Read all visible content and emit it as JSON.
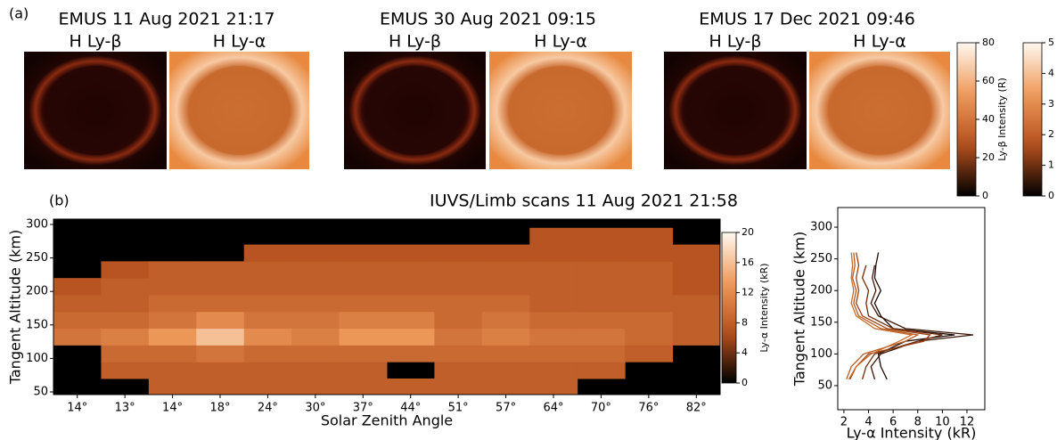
{
  "panel_a": {
    "label": "(a)",
    "observations": [
      {
        "title": "EMUS  11 Aug 2021 21:17",
        "images": [
          "H Ly-β",
          "H Ly-α"
        ]
      },
      {
        "title": "EMUS  30 Aug 2021 09:15",
        "images": [
          "H Ly-β",
          "H Ly-α"
        ]
      },
      {
        "title": "EMUS  17 Dec 2021 09:46",
        "images": [
          "H Ly-β",
          "H Ly-α"
        ]
      }
    ],
    "colorbars": [
      {
        "label": "Ly-β Intensity (R)",
        "lim": [
          0,
          80
        ],
        "ticks": [
          0,
          20,
          40,
          60,
          80
        ]
      },
      {
        "label": "Ly-α Intensity (kR)",
        "lim": [
          0,
          5
        ],
        "ticks": [
          0,
          1,
          2,
          3,
          4,
          5
        ]
      }
    ]
  },
  "colormap": [
    "#000000",
    "#b5501e",
    "#ef9a5a",
    "#fff8f0"
  ],
  "chart_data": [
    {
      "type": "heatmap",
      "label": "(b)",
      "title": "IUVS/Limb scans  11 Aug 2021 21:58",
      "xlabel": "Solar Zenith Angle",
      "ylabel": "Tangent Altitude (km)",
      "categories": [
        "14°",
        "13°",
        "14°",
        "18°",
        "24°",
        "30°",
        "37°",
        "44°",
        "51°",
        "57°",
        "64°",
        "70°",
        "76°",
        "82°"
      ],
      "ybins": [
        46,
        70,
        95,
        120,
        145,
        170,
        195,
        220,
        245,
        270,
        295
      ],
      "ylim": [
        46,
        308
      ],
      "yticks": [
        50,
        100,
        150,
        200,
        250,
        300
      ],
      "values": [
        [
          null,
          null,
          null,
          10,
          9,
          8,
          7,
          null,
          null,
          null
        ],
        [
          null,
          8,
          9,
          11,
          9,
          8,
          8,
          7,
          null,
          null
        ],
        [
          8,
          8,
          9,
          13,
          10,
          9,
          8,
          8,
          null,
          null
        ],
        [
          8,
          8,
          10,
          16,
          12,
          9,
          8,
          8,
          null,
          null
        ],
        [
          8,
          8,
          9,
          12,
          10,
          9,
          8,
          8,
          7,
          null
        ],
        [
          8,
          8,
          9,
          11,
          10,
          9,
          8,
          8,
          7,
          null
        ],
        [
          8,
          8,
          9,
          13,
          11,
          9,
          8,
          8,
          7,
          null
        ],
        [
          8,
          null,
          9,
          13,
          11,
          9,
          8,
          8,
          7,
          null
        ],
        [
          8,
          8,
          9,
          10,
          9,
          9,
          8,
          8,
          7,
          null
        ],
        [
          8,
          8,
          9,
          11,
          10,
          9,
          8,
          8,
          7,
          null
        ],
        [
          8,
          8,
          9,
          10,
          9,
          8,
          8,
          8,
          7,
          7
        ],
        [
          null,
          8,
          9,
          10,
          9,
          8,
          8,
          8,
          7,
          7
        ],
        [
          null,
          null,
          8,
          9,
          9,
          8,
          8,
          8,
          7,
          7
        ],
        [
          null,
          null,
          null,
          8,
          8,
          8,
          7,
          7,
          7,
          null
        ]
      ],
      "zlim": [
        0,
        20
      ],
      "zticks": [
        0,
        4,
        8,
        12,
        16,
        20
      ],
      "zlabel": "Ly-α Intensity (kR)"
    },
    {
      "type": "line",
      "xlabel": "Ly-α Intensity (kR)",
      "ylabel": "Tangent Altitude (km)",
      "altitudes": [
        60,
        80,
        100,
        120,
        130,
        140,
        160,
        180,
        200,
        220,
        240,
        260
      ],
      "xlim": [
        1.5,
        13.45
      ],
      "xticks": [
        2,
        4,
        6,
        8,
        10,
        12
      ],
      "ylim": [
        12,
        331
      ],
      "yticks": [
        50,
        100,
        150,
        200,
        250,
        300
      ],
      "series": [
        {
          "color": "#1a0a05",
          "values": [
            5.5,
            5,
            4.8,
            7,
            11,
            6,
            5,
            4.5,
            5,
            4.5,
            4.6,
            4.8
          ]
        },
        {
          "color": "#3d1505",
          "values": [
            4.5,
            4.2,
            5,
            8,
            12.5,
            7,
            4.8,
            4.2,
            4.6,
            4.3,
            4.5,
            null
          ]
        },
        {
          "color": "#6b2a0a",
          "values": [
            3.5,
            3.8,
            4.5,
            8,
            10,
            6,
            4,
            3.8,
            4,
            3.5,
            3.8,
            null
          ]
        },
        {
          "color": "#9a4012",
          "values": [
            2.5,
            3,
            4,
            8.5,
            9,
            5.5,
            3.5,
            3,
            3.2,
            3,
            3.2,
            3
          ]
        },
        {
          "color": "#b85a1e",
          "values": [
            2.2,
            2.6,
            3.6,
            7,
            8,
            5,
            3.2,
            2.8,
            3,
            2.7,
            2.9,
            2.8
          ]
        },
        {
          "color": "#c86a2a",
          "values": [
            2.4,
            3,
            4.2,
            6.5,
            7.5,
            4.5,
            3,
            2.6,
            2.8,
            2.6,
            2.7,
            2.6
          ]
        }
      ]
    }
  ]
}
